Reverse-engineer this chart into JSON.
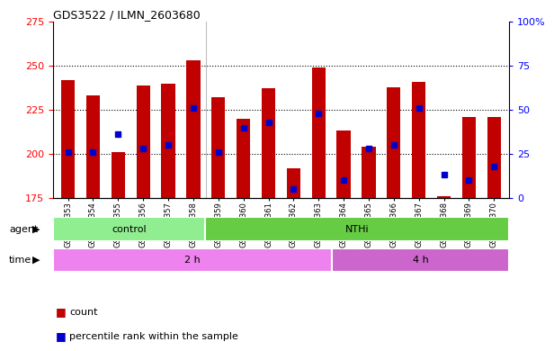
{
  "title": "GDS3522 / ILMN_2603680",
  "samples": [
    "GSM345353",
    "GSM345354",
    "GSM345355",
    "GSM345356",
    "GSM345357",
    "GSM345358",
    "GSM345359",
    "GSM345360",
    "GSM345361",
    "GSM345362",
    "GSM345363",
    "GSM345364",
    "GSM345365",
    "GSM345366",
    "GSM345367",
    "GSM345368",
    "GSM345369",
    "GSM345370"
  ],
  "bar_tops": [
    242,
    233,
    201,
    239,
    240,
    253,
    232,
    220,
    237,
    192,
    249,
    213,
    204,
    238,
    241,
    176,
    221,
    221
  ],
  "bar_base": 175,
  "blue_pct": [
    26,
    26,
    36,
    28,
    30,
    51,
    26,
    40,
    43,
    5,
    48,
    10,
    28,
    30,
    51,
    13,
    10,
    18
  ],
  "ylim_left": [
    175,
    275
  ],
  "yticks_left": [
    175,
    200,
    225,
    250,
    275
  ],
  "ylim_right": [
    0,
    100
  ],
  "yticks_right": [
    0,
    25,
    50,
    75,
    100
  ],
  "gridlines": [
    200,
    225,
    250
  ],
  "bar_color": "#C10000",
  "blue_color": "#0000CD",
  "agent_groups": [
    {
      "label": "control",
      "start": 0,
      "end": 6,
      "color": "#90EE90"
    },
    {
      "label": "NTHi",
      "start": 6,
      "end": 18,
      "color": "#66CC44"
    }
  ],
  "time_groups": [
    {
      "label": "2 h",
      "start": 0,
      "end": 11,
      "color": "#EE82EE"
    },
    {
      "label": "4 h",
      "start": 11,
      "end": 18,
      "color": "#CC66CC"
    }
  ],
  "legend_count_label": "count",
  "legend_pct_label": "percentile rank within the sample",
  "xlabel_agent": "agent",
  "xlabel_time": "time",
  "bar_width": 0.55,
  "blue_marker_size": 5
}
